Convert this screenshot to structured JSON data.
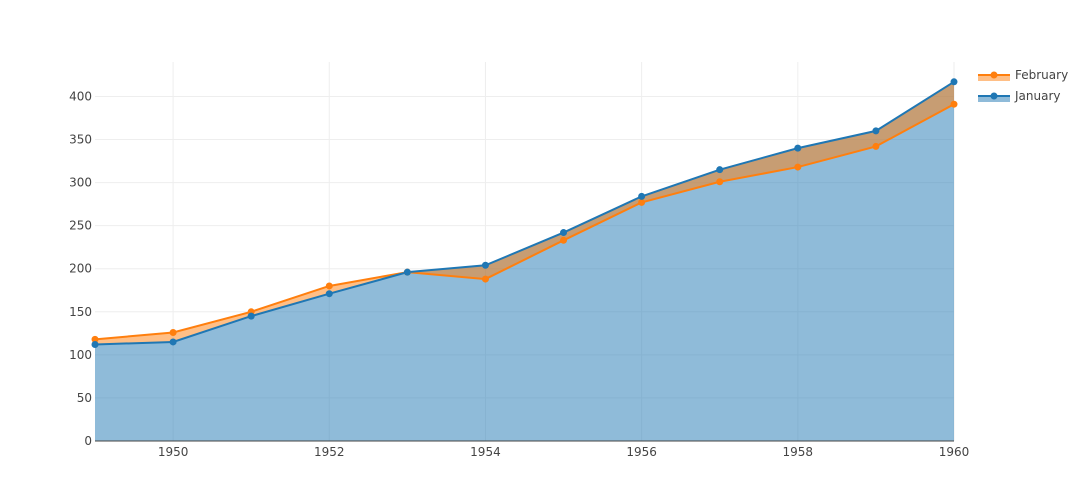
{
  "chart_data": {
    "type": "area",
    "x": [
      1949,
      1950,
      1951,
      1952,
      1953,
      1954,
      1955,
      1956,
      1957,
      1958,
      1959,
      1960
    ],
    "series": [
      {
        "name": "January",
        "color": "#1f77b4",
        "values": [
          112,
          115,
          145,
          171,
          196,
          204,
          242,
          284,
          315,
          340,
          360,
          417
        ]
      },
      {
        "name": "February",
        "color": "#ff7f0e",
        "values": [
          118,
          126,
          150,
          180,
          196,
          188,
          233,
          277,
          301,
          318,
          342,
          391
        ]
      }
    ],
    "xlim": [
      1949,
      1960
    ],
    "ylim": [
      0,
      440
    ],
    "x_ticks": [
      1950,
      1952,
      1954,
      1956,
      1958,
      1960
    ],
    "y_ticks": [
      0,
      50,
      100,
      150,
      200,
      250,
      300,
      350,
      400
    ],
    "grid": true,
    "legend_position": "top-right",
    "legend_order": [
      "February",
      "January"
    ]
  }
}
